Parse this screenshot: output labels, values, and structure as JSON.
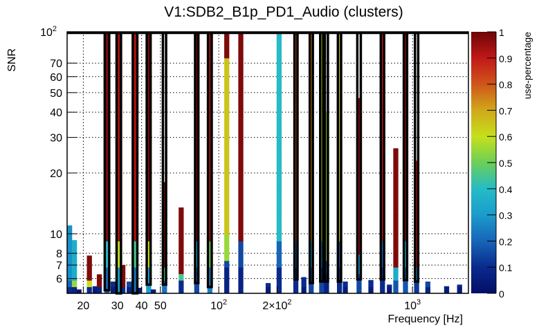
{
  "chart_data": {
    "type": "heatmap",
    "title": "V1:SDB2_B1p_PD1_Audio (clusters)",
    "xlabel": "Frequency [Hz]",
    "ylabel": "SNR",
    "zlabel": "use-percentage",
    "x_scale": "log",
    "y_scale": "log",
    "xlim": [
      16.5,
      1944
    ],
    "ylim": [
      5.07,
      100
    ],
    "zlim": [
      0,
      1
    ],
    "grid": true,
    "x_ticks": [
      {
        "value": 20,
        "label": "20"
      },
      {
        "value": 30,
        "label": "30"
      },
      {
        "value": 40,
        "label": "40"
      },
      {
        "value": 50,
        "label": "50"
      },
      {
        "value": 100,
        "label": "10",
        "sup": "2"
      },
      {
        "value": 200,
        "label": "2×10",
        "sup": "2"
      },
      {
        "value": 1000,
        "label": "10",
        "sup": "3"
      }
    ],
    "y_ticks": [
      {
        "value": 6,
        "label": "6"
      },
      {
        "value": 7,
        "label": "7"
      },
      {
        "value": 8,
        "label": "8"
      },
      {
        "value": 10,
        "label": "10"
      },
      {
        "value": 20,
        "label": "20"
      },
      {
        "value": 30,
        "label": "30"
      },
      {
        "value": 40,
        "label": "40"
      },
      {
        "value": 50,
        "label": "50"
      },
      {
        "value": 60,
        "label": "60"
      },
      {
        "value": 70,
        "label": "70"
      },
      {
        "value": 100,
        "label": "10",
        "sup": "2"
      }
    ],
    "z_ticks": [
      "0",
      "0.1",
      "0.2",
      "0.3",
      "0.4",
      "0.5",
      "0.6",
      "0.7",
      "0.8",
      "0.9",
      "1"
    ],
    "columns": [
      {
        "f": 17.0,
        "snr_max": 11.0,
        "base": 0.2,
        "top": 0.28
      },
      {
        "f": 18.0,
        "snr_max": 9.3,
        "base": 0.15,
        "top": 0.35,
        "mark": 0.55
      },
      {
        "f": 19.0,
        "snr_max": 5.3,
        "base": 0.05,
        "top": 0.05
      },
      {
        "f": 21.5,
        "snr_max": 7.8,
        "base": 0.2,
        "top": 0.98,
        "mark": 0.6
      },
      {
        "f": 23.0,
        "snr_max": 5.5,
        "base": 0.1,
        "top": 0.1
      },
      {
        "f": 24.2,
        "snr_max": 6.3,
        "base": 0.15,
        "top": 0.98,
        "mark": 0.55
      },
      {
        "f": 26.5,
        "snr_max": 100,
        "base": 0.4,
        "top": 0.98,
        "cluster": true
      },
      {
        "f": 28.5,
        "snr_max": 5.8,
        "base": 0.1,
        "top": 0.1
      },
      {
        "f": 30.5,
        "snr_max": 100,
        "base": 0.6,
        "top": 0.93,
        "cluster": true
      },
      {
        "f": 32.0,
        "snr_max": 7.0,
        "base": 0.2,
        "top": 0.98,
        "mark": 0.5
      },
      {
        "f": 34.5,
        "snr_max": 5.8,
        "base": 0.15,
        "top": 0.15
      },
      {
        "f": 37.0,
        "snr_max": 100,
        "base": 0.45,
        "top": 0.92,
        "cluster": true
      },
      {
        "f": 39.0,
        "snr_max": 5.4,
        "base": 0.1,
        "top": 0.1
      },
      {
        "f": 43.5,
        "snr_max": 100,
        "base": 0.6,
        "top": 0.98,
        "cluster": true
      },
      {
        "f": 46.0,
        "snr_max": 5.3,
        "base": 0.1,
        "top": 0.1
      },
      {
        "f": 52.5,
        "snr_max": 18.0,
        "base": 0.45,
        "top": 0.98,
        "cluster": true
      },
      {
        "f": 64.0,
        "snr_max": 13.5,
        "base": 0.2,
        "top": 0.98,
        "mark": 0.45
      },
      {
        "f": 77.0,
        "snr_max": 100,
        "base": 0.3,
        "top": 0.98,
        "cluster": true
      },
      {
        "f": 90.0,
        "snr_max": 100,
        "base": 0.5,
        "top": 0.93,
        "cluster": true
      },
      {
        "f": 110.0,
        "snr_max": 100,
        "base": 0.15,
        "top": 0.65,
        "mark": 0.55,
        "upper": 0.98
      },
      {
        "f": 130.0,
        "snr_max": 100,
        "base": 0.15,
        "top": 0.98
      },
      {
        "f": 180.0,
        "snr_max": 5.7,
        "base": 0.1,
        "top": 0.1
      },
      {
        "f": 205.0,
        "snr_max": 100,
        "base": 0.2,
        "top": 0.4
      },
      {
        "f": 250.0,
        "snr_max": 100,
        "base": 0.2,
        "top": 0.8,
        "cluster": true
      },
      {
        "f": 275.0,
        "snr_max": 6.1,
        "base": 0.1,
        "top": 0.1
      },
      {
        "f": 300.0,
        "snr_max": 100,
        "base": 0.3,
        "top": 0.75,
        "cluster": true
      },
      {
        "f": 340.0,
        "snr_max": 100,
        "base": 0.3,
        "top": 0.6,
        "cluster": true
      },
      {
        "f": 360.0,
        "snr_max": 40.0,
        "base": 0.15,
        "top": 0.55,
        "cluster": true
      },
      {
        "f": 420.0,
        "snr_max": 100,
        "base": 0.2,
        "top": 0.65,
        "cluster": true
      },
      {
        "f": 450.0,
        "snr_max": 5.8,
        "base": 0.1,
        "top": 0.1
      },
      {
        "f": 530.0,
        "snr_max": 47.0,
        "base": 0.3,
        "top": 0.95,
        "cluster": true
      },
      {
        "f": 610.0,
        "snr_max": 5.9,
        "base": 0.1,
        "top": 0.1
      },
      {
        "f": 700.0,
        "snr_max": 100,
        "base": 0.2,
        "top": 0.9,
        "cluster": true
      },
      {
        "f": 760.0,
        "snr_max": 5.6,
        "base": 0.1,
        "top": 0.1
      },
      {
        "f": 820.0,
        "snr_max": 26.5,
        "base": 0.35,
        "top": 0.98
      },
      {
        "f": 920.0,
        "snr_max": 100,
        "base": 0.35,
        "top": 0.95,
        "cluster": true
      },
      {
        "f": 1050.0,
        "snr_max": 23.0,
        "base": 0.25,
        "top": 0.9,
        "cluster": true
      },
      {
        "f": 1200.0,
        "snr_max": 5.8,
        "base": 0.15,
        "top": 0.15
      },
      {
        "f": 1500.0,
        "snr_max": 5.5,
        "base": 0.1,
        "top": 0.1
      },
      {
        "f": 1750.0,
        "snr_max": 5.6,
        "base": 0.1,
        "top": 0.1
      }
    ],
    "cluster_boxes": [
      {
        "f_lo": 25.8,
        "f_hi": 27.2,
        "snr_hi": 100,
        "snr_lo": 5.25
      },
      {
        "f_lo": 29.7,
        "f_hi": 31.3,
        "snr_hi": 100,
        "snr_lo": 5.07
      },
      {
        "f_lo": 36.0,
        "f_hi": 38.0,
        "snr_hi": 100,
        "snr_lo": 5.07
      },
      {
        "f_lo": 42.5,
        "f_hi": 44.5,
        "snr_hi": 100,
        "snr_lo": 5.6
      },
      {
        "f_lo": 51.5,
        "f_hi": 53.5,
        "snr_hi": 100,
        "snr_lo": 5.6
      },
      {
        "f_lo": 75.5,
        "f_hi": 78.5,
        "snr_hi": 100,
        "snr_lo": 5.7
      },
      {
        "f_lo": 88.0,
        "f_hi": 92.0,
        "snr_hi": 100,
        "snr_lo": 5.45
      },
      {
        "f_lo": 246.0,
        "f_hi": 255.0,
        "snr_hi": 100,
        "snr_lo": 5.95
      },
      {
        "f_lo": 295.0,
        "f_hi": 306.0,
        "snr_hi": 100,
        "snr_lo": 5.7
      },
      {
        "f_lo": 334.0,
        "f_hi": 346.0,
        "snr_hi": 100,
        "snr_lo": 5.8
      },
      {
        "f_lo": 353.0,
        "f_hi": 366.0,
        "snr_hi": 100,
        "snr_lo": 5.8
      },
      {
        "f_lo": 412.0,
        "f_hi": 428.0,
        "snr_hi": 100,
        "snr_lo": 5.8
      },
      {
        "f_lo": 519.0,
        "f_hi": 541.0,
        "snr_hi": 100,
        "snr_lo": 5.95
      },
      {
        "f_lo": 686.0,
        "f_hi": 714.0,
        "snr_hi": 100,
        "snr_lo": 5.95
      },
      {
        "f_lo": 902.0,
        "f_hi": 938.0,
        "snr_hi": 100,
        "snr_lo": 5.9
      },
      {
        "f_lo": 1030.0,
        "f_hi": 1070.0,
        "snr_hi": 100,
        "snr_lo": 5.8
      }
    ]
  }
}
